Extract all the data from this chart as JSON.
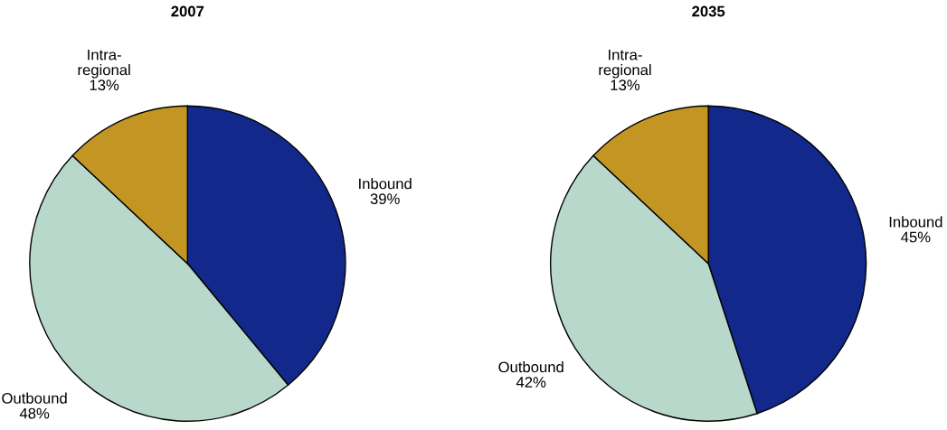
{
  "chart_data": [
    {
      "type": "pie",
      "title": "2007",
      "categories": [
        "Inbound",
        "Outbound",
        "Intra-\nregional"
      ],
      "values": [
        39,
        48,
        13
      ],
      "value_labels": [
        "39%",
        "48%",
        "13%"
      ],
      "colors": [
        "#12288a",
        "#b8d8cc",
        "#c39623"
      ]
    },
    {
      "type": "pie",
      "title": "2035",
      "categories": [
        "Inbound",
        "Outbound",
        "Intra-\nregional"
      ],
      "values": [
        45,
        42,
        13
      ],
      "value_labels": [
        "45%",
        "42%",
        "13%"
      ],
      "colors": [
        "#12288a",
        "#b8d8cc",
        "#c39623"
      ]
    }
  ]
}
